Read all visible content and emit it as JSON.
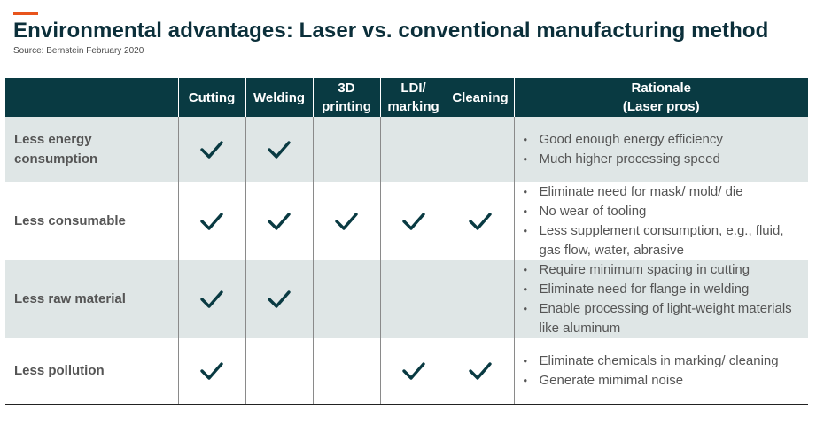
{
  "title": "Environmental advantages: Laser vs. conventional manufacturing method",
  "source": "Source: Bernstein February 2020",
  "colors": {
    "accent": "#e8541c",
    "header_bg": "#093a42",
    "check": "#093a42",
    "row_shade": "#dfe6e6"
  },
  "columns": {
    "cutting": "Cutting",
    "welding": "Welding",
    "printing_line1": "3D",
    "printing_line2": "printing",
    "ldi_line1": "LDI/",
    "ldi_line2": "marking",
    "cleaning": "Cleaning",
    "rationale_line1": "Rationale",
    "rationale_line2": "(Laser pros)"
  },
  "rows": [
    {
      "label_line1": "Less energy",
      "label_line2": "consumption",
      "checks": [
        "checked",
        "checked",
        "",
        "",
        ""
      ],
      "rationale": [
        "Good enough energy efficiency",
        "Much higher processing speed"
      ]
    },
    {
      "label_line1": "Less consumable",
      "label_line2": "",
      "checks": [
        "checked",
        "checked",
        "checked",
        "checked",
        "checked"
      ],
      "rationale": [
        "Eliminate need for mask/ mold/ die",
        "No wear of tooling",
        "Less supplement consumption, e.g., fluid, gas flow, water, abrasive"
      ]
    },
    {
      "label_line1": "Less raw material",
      "label_line2": "",
      "checks": [
        "checked",
        "checked",
        "",
        "",
        ""
      ],
      "rationale": [
        "Require minimum spacing in cutting",
        "Eliminate need for flange in welding",
        "Enable processing of light-weight materials like aluminum"
      ]
    },
    {
      "label_line1": "Less pollution",
      "label_line2": "",
      "checks": [
        "checked",
        "",
        "",
        "checked",
        "checked"
      ],
      "rationale": [
        "Eliminate chemicals in marking/ cleaning",
        "Generate mimimal noise"
      ]
    }
  ],
  "bullet_glyph": "•"
}
